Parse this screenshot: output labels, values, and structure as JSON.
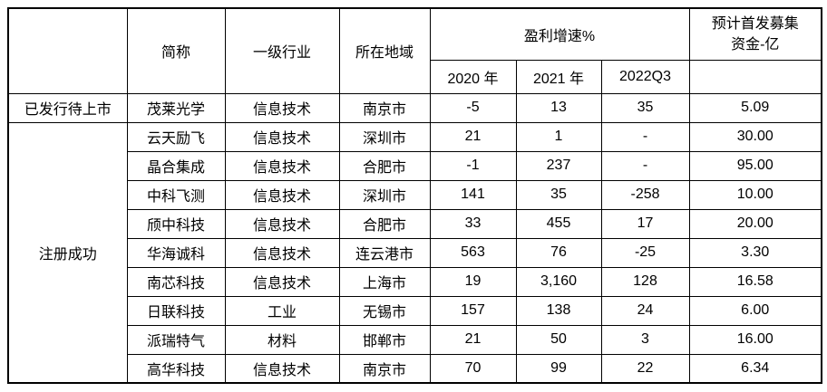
{
  "colors": {
    "border": "#000000",
    "text": "#000000",
    "background": "#ffffff"
  },
  "table": {
    "header": {
      "category": "",
      "short_name": "简称",
      "industry": "一级行业",
      "region": "所在地域",
      "profit_growth": "盈利增速%",
      "ipo_funds_line1": "预计首发募集",
      "ipo_funds_line2": "资金-亿",
      "sub_2020": "2020 年",
      "sub_2021": "2021 年",
      "sub_2022q3": "2022Q3",
      "sub_funds": ""
    },
    "groups": [
      {
        "category": "已发行待上市",
        "rows": [
          {
            "name": "茂莱光学",
            "industry": "信息技术",
            "region": "南京市",
            "g2020": "-5",
            "g2021": "13",
            "g2022q3": "35",
            "funds": "5.09"
          }
        ]
      },
      {
        "category": "注册成功",
        "rows": [
          {
            "name": "云天励飞",
            "industry": "信息技术",
            "region": "深圳市",
            "g2020": "21",
            "g2021": "1",
            "g2022q3": "-",
            "funds": "30.00"
          },
          {
            "name": "晶合集成",
            "industry": "信息技术",
            "region": "合肥市",
            "g2020": "-1",
            "g2021": "237",
            "g2022q3": "-",
            "funds": "95.00"
          },
          {
            "name": "中科飞测",
            "industry": "信息技术",
            "region": "深圳市",
            "g2020": "141",
            "g2021": "35",
            "g2022q3": "-258",
            "funds": "10.00"
          },
          {
            "name": "颀中科技",
            "industry": "信息技术",
            "region": "合肥市",
            "g2020": "33",
            "g2021": "455",
            "g2022q3": "17",
            "funds": "20.00"
          },
          {
            "name": "华海诚科",
            "industry": "信息技术",
            "region": "连云港市",
            "g2020": "563",
            "g2021": "76",
            "g2022q3": "-25",
            "funds": "3.30"
          },
          {
            "name": "南芯科技",
            "industry": "信息技术",
            "region": "上海市",
            "g2020": "19",
            "g2021": "3,160",
            "g2022q3": "128",
            "funds": "16.58"
          },
          {
            "name": "日联科技",
            "industry": "工业",
            "region": "无锡市",
            "g2020": "157",
            "g2021": "138",
            "g2022q3": "24",
            "funds": "6.00"
          },
          {
            "name": "派瑞特气",
            "industry": "材料",
            "region": "邯郸市",
            "g2020": "21",
            "g2021": "50",
            "g2022q3": "3",
            "funds": "16.00"
          },
          {
            "name": "高华科技",
            "industry": "信息技术",
            "region": "南京市",
            "g2020": "70",
            "g2021": "99",
            "g2022q3": "22",
            "funds": "6.34"
          }
        ]
      }
    ]
  }
}
